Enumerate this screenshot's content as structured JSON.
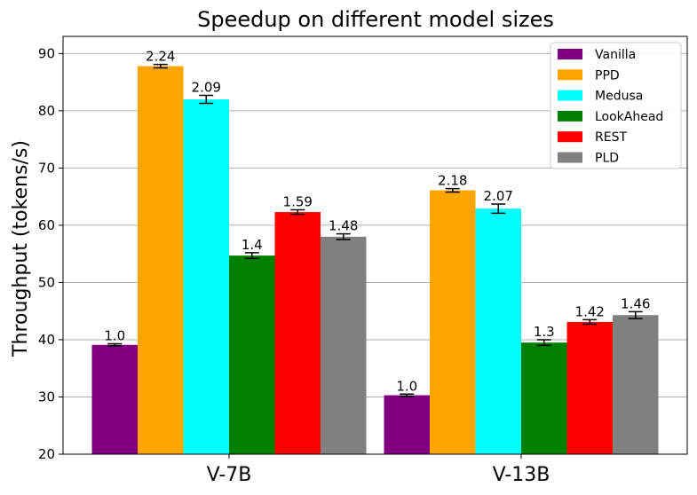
{
  "chart_data": {
    "type": "bar",
    "title": "Speedup on different model sizes",
    "xlabel": "",
    "ylabel": "Throughput (tokens/s)",
    "ylim": [
      20,
      93
    ],
    "yticks": [
      "20",
      "30",
      "40",
      "50",
      "60",
      "70",
      "80",
      "90"
    ],
    "ytick_values": [
      20,
      30,
      40,
      50,
      60,
      70,
      80,
      90
    ],
    "grid": "horizontal",
    "legend_position": "top-right",
    "categories": [
      "V-7B",
      "V-13B"
    ],
    "series": [
      {
        "name": "Vanilla",
        "color": "#800080",
        "values": [
          39.1,
          30.3
        ],
        "errors": [
          0.2,
          0.2
        ],
        "labels": [
          "1.0",
          "1.0"
        ]
      },
      {
        "name": "PPD",
        "color": "#FFA500",
        "values": [
          87.8,
          66.1
        ],
        "errors": [
          0.3,
          0.3
        ],
        "labels": [
          "2.24",
          "2.18"
        ]
      },
      {
        "name": "Medusa",
        "color": "#00FFFF",
        "values": [
          82.0,
          62.9
        ],
        "errors": [
          0.7,
          0.8
        ],
        "labels": [
          "2.09",
          "2.07"
        ]
      },
      {
        "name": "LookAhead",
        "color": "#008000",
        "values": [
          54.7,
          39.5
        ],
        "errors": [
          0.5,
          0.5
        ],
        "labels": [
          "1.4",
          "1.3"
        ]
      },
      {
        "name": "REST",
        "color": "#FF0000",
        "values": [
          62.3,
          43.1
        ],
        "errors": [
          0.4,
          0.4
        ],
        "labels": [
          "1.59",
          "1.42"
        ]
      },
      {
        "name": "PLD",
        "color": "#808080",
        "values": [
          58.0,
          44.3
        ],
        "errors": [
          0.5,
          0.6
        ],
        "labels": [
          "1.48",
          "1.46"
        ]
      }
    ]
  }
}
